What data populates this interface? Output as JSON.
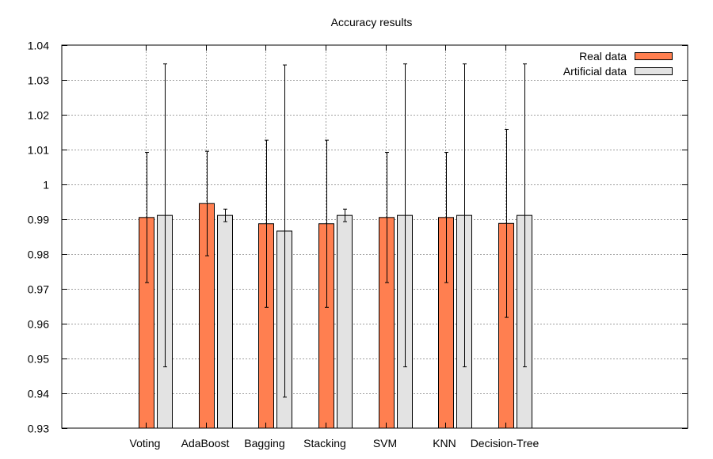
{
  "chart_data": {
    "type": "bar",
    "title": "Accuracy results",
    "xlabel": "",
    "ylabel": "",
    "ylim": [
      0.93,
      1.04
    ],
    "yticks": [
      0.93,
      0.94,
      0.95,
      0.96,
      0.97,
      0.98,
      0.99,
      1.0,
      1.01,
      1.02,
      1.03,
      1.04
    ],
    "ytick_labels": [
      "0.93",
      "0.94",
      "0.95",
      "0.96",
      "0.97",
      "0.98",
      "0.99",
      "1",
      "1.01",
      "1.02",
      "1.03",
      "1.04"
    ],
    "categories": [
      "Voting",
      "AdaBoost",
      "Bagging",
      "Stacking",
      "SVM",
      "KNN",
      "Decision-Tree"
    ],
    "grid": true,
    "legend_position": "top-right",
    "series": [
      {
        "name": "Real data",
        "color": "#ff7f50",
        "values": [
          0.9905,
          0.9945,
          0.9887,
          0.9887,
          0.9905,
          0.9905,
          0.9888
        ],
        "errors": [
          0.0187,
          0.015,
          0.024,
          0.024,
          0.0187,
          0.0187,
          0.027
        ]
      },
      {
        "name": "Artificial data",
        "color": "#e3e3e3",
        "values": [
          0.9911,
          0.9911,
          0.9866,
          0.9911,
          0.9911,
          0.9911,
          0.9911
        ],
        "errors": [
          0.0435,
          0.0018,
          0.0477,
          0.0018,
          0.0435,
          0.0435,
          0.0435
        ]
      }
    ]
  }
}
